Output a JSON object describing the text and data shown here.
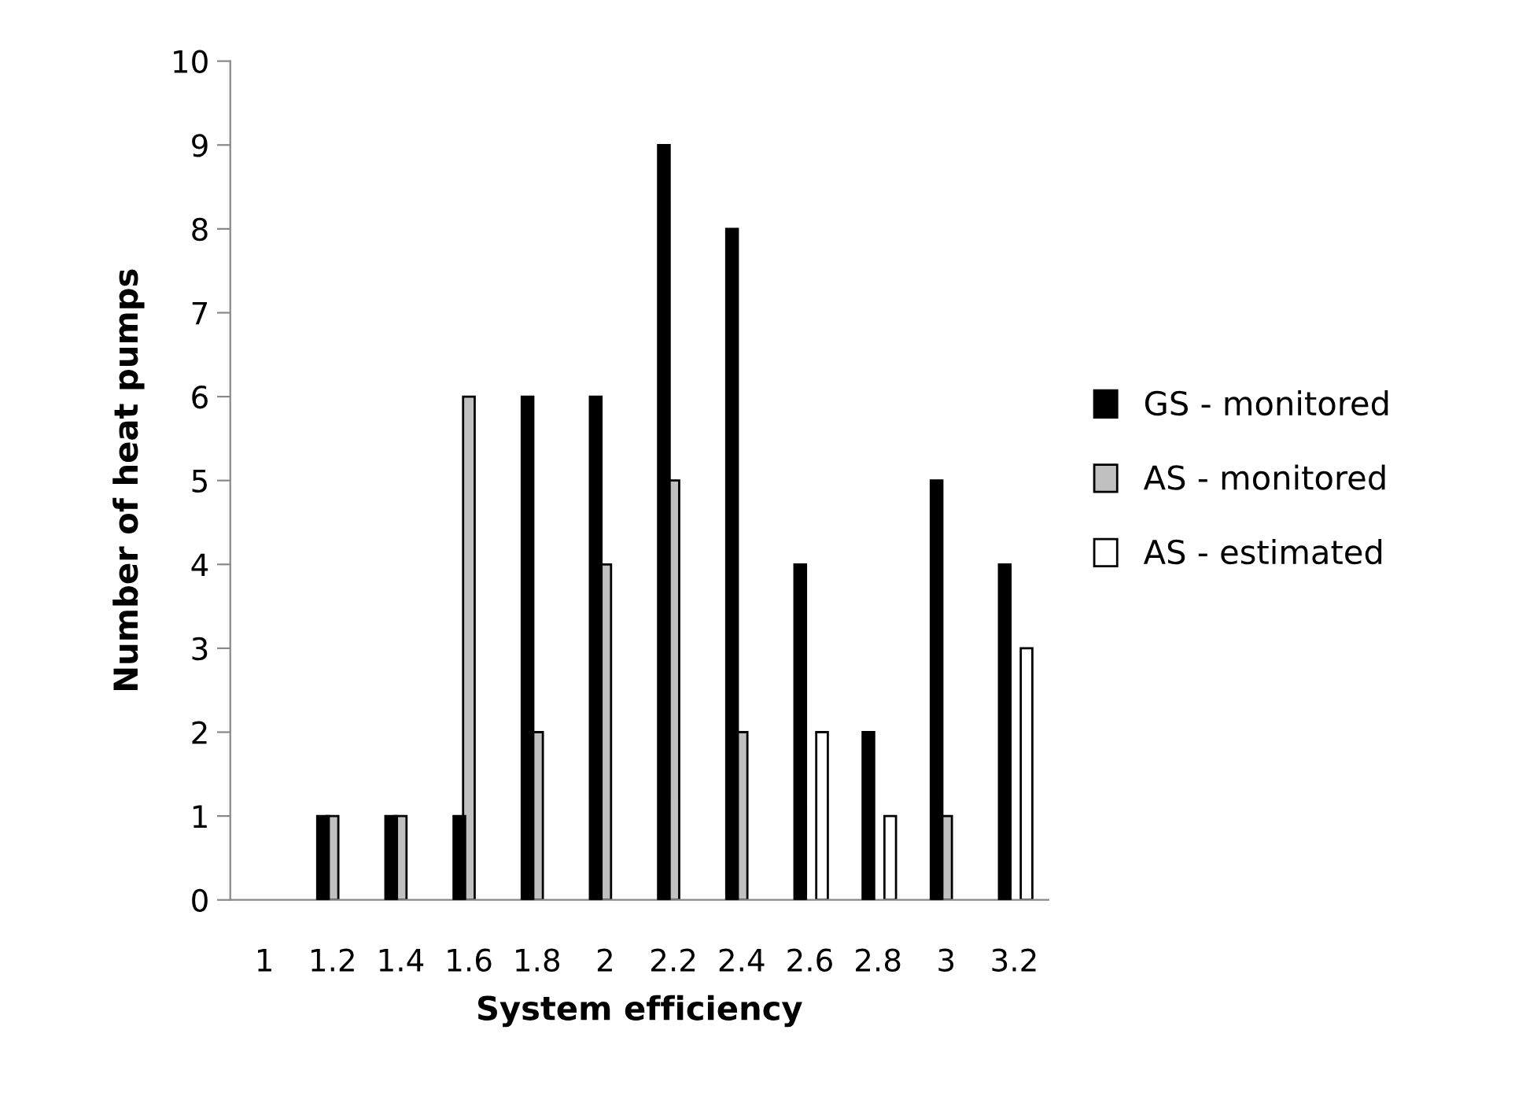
{
  "chart_data": {
    "type": "bar",
    "xlabel": "System efficiency",
    "ylabel": "Number of heat pumps",
    "categories": [
      "1",
      "1.2",
      "1.4",
      "1.6",
      "1.8",
      "2",
      "2.2",
      "2.4",
      "2.6",
      "2.8",
      "3",
      "3.2"
    ],
    "series": [
      {
        "name": "GS - monitored",
        "color": "#000000",
        "values": [
          null,
          1,
          1,
          1,
          6,
          6,
          9,
          8,
          4,
          2,
          5,
          4
        ]
      },
      {
        "name": "AS - monitored",
        "color": "#c0c0c0",
        "values": [
          null,
          1,
          1,
          6,
          2,
          4,
          5,
          2,
          null,
          null,
          1,
          null
        ]
      },
      {
        "name": "AS - estimated",
        "color": "#ffffff",
        "values": [
          null,
          null,
          null,
          null,
          null,
          null,
          null,
          null,
          2,
          1,
          null,
          3
        ]
      }
    ],
    "ylim": [
      0,
      10
    ],
    "yticks": [
      0,
      1,
      2,
      3,
      4,
      5,
      6,
      7,
      8,
      9,
      10
    ],
    "grid": false,
    "legend": "right"
  }
}
